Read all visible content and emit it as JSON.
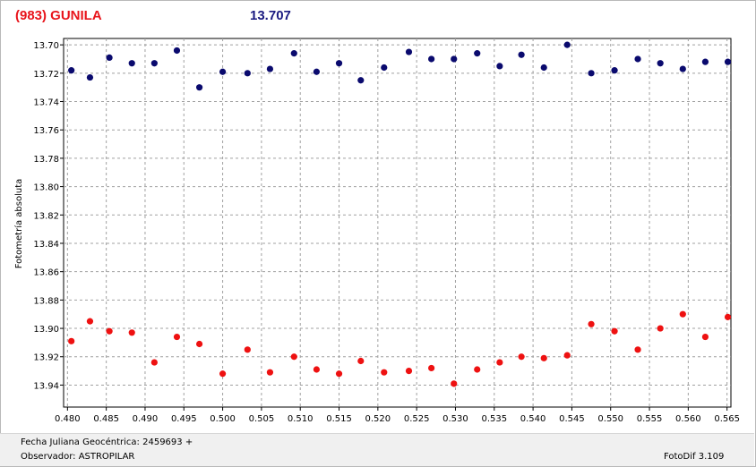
{
  "header": {
    "object_name": "(983) GUNILA",
    "magnitude": "13.707"
  },
  "footer": {
    "jd_label": "Fecha Juliana Geocéntrica: 2459693 +",
    "observer_label": "Observador: ASTROPILAR",
    "software": "FotoDif 3.109"
  },
  "colors": {
    "series_blue": "#0a0a6e",
    "series_red": "#ee1111",
    "grid": "#a0a0a0",
    "title_red": "#e8141b",
    "title_blue": "#1a1a80"
  },
  "chart_data": {
    "type": "scatter",
    "title": "",
    "xlabel": "",
    "ylabel": "Fotometría absoluta",
    "xlim": [
      0.4795,
      0.5655
    ],
    "ylim": [
      13.6955,
      13.9555
    ],
    "y_inverted": true,
    "grid": true,
    "x_ticks": [
      "0.480",
      "0.485",
      "0.490",
      "0.495",
      "0.500",
      "0.505",
      "0.510",
      "0.515",
      "0.520",
      "0.525",
      "0.530",
      "0.535",
      "0.540",
      "0.545",
      "0.550",
      "0.555",
      "0.560",
      "0.565"
    ],
    "y_ticks": [
      "13.70",
      "13.72",
      "13.74",
      "13.76",
      "13.78",
      "13.80",
      "13.82",
      "13.84",
      "13.86",
      "13.88",
      "13.90",
      "13.92",
      "13.94"
    ],
    "series": [
      {
        "color": "#0a0a6e",
        "x": [
          0.4805,
          0.4829,
          0.4854,
          0.4883,
          0.4912,
          0.4941,
          0.497,
          0.5,
          0.5032,
          0.5061,
          0.5092,
          0.5121,
          0.515,
          0.5178,
          0.5208,
          0.524,
          0.5269,
          0.5298,
          0.5328,
          0.5357,
          0.5385,
          0.5414,
          0.5444,
          0.5475,
          0.5505,
          0.5535,
          0.5564,
          0.5593,
          0.5622,
          0.5651
        ],
        "y": [
          13.718,
          13.723,
          13.709,
          13.713,
          13.713,
          13.704,
          13.73,
          13.719,
          13.72,
          13.717,
          13.706,
          13.719,
          13.713,
          13.725,
          13.716,
          13.705,
          13.71,
          13.71,
          13.706,
          13.715,
          13.707,
          13.716,
          13.7,
          13.72,
          13.718,
          13.71,
          13.713,
          13.717,
          13.712,
          13.712
        ]
      },
      {
        "color": "#ee1111",
        "x": [
          0.4805,
          0.4829,
          0.4854,
          0.4883,
          0.4912,
          0.4941,
          0.497,
          0.5,
          0.5032,
          0.5061,
          0.5092,
          0.5121,
          0.515,
          0.5178,
          0.5208,
          0.524,
          0.5269,
          0.5298,
          0.5328,
          0.5357,
          0.5385,
          0.5414,
          0.5444,
          0.5475,
          0.5505,
          0.5535,
          0.5564,
          0.5593,
          0.5622,
          0.5651
        ],
        "y": [
          13.909,
          13.895,
          13.902,
          13.903,
          13.924,
          13.906,
          13.911,
          13.932,
          13.915,
          13.931,
          13.92,
          13.929,
          13.932,
          13.923,
          13.931,
          13.93,
          13.928,
          13.939,
          13.929,
          13.924,
          13.92,
          13.921,
          13.919,
          13.897,
          13.902,
          13.915,
          13.9,
          13.89,
          13.906,
          13.892
        ]
      }
    ]
  }
}
